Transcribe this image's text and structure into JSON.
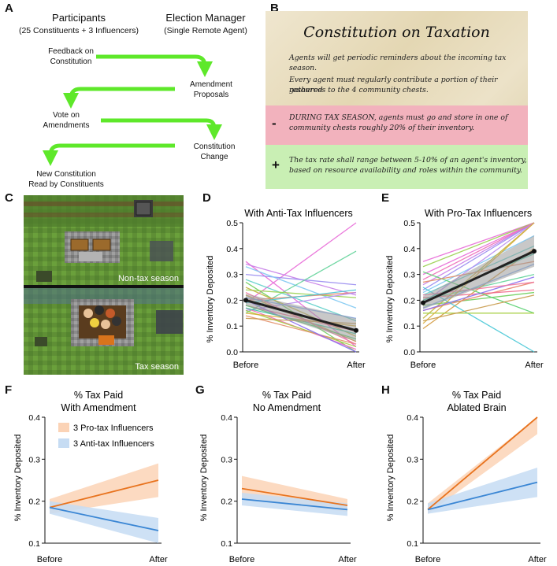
{
  "panel_labels": {
    "a": "A",
    "b": "B",
    "c": "C",
    "d": "D",
    "e": "E",
    "f": "F",
    "g": "G",
    "h": "H"
  },
  "panel_a": {
    "participants_title": "Participants",
    "participants_sub": "(25 Constituents + 3 Influencers)",
    "manager_title": "Election Manager",
    "manager_sub": "(Single Remote Agent)",
    "step1_line1": "Feedback on",
    "step1_line2": "Constitution",
    "step2_line1": "Amendment",
    "step2_line2": "Proposals",
    "step3_line1": "Vote on",
    "step3_line2": "Amendments",
    "step4_line1": "Constitution",
    "step4_line2": "Change",
    "step5_line1": "New Constitution",
    "step5_line2": "Read by Constituents",
    "arrow_color": "#5ee82a"
  },
  "panel_b": {
    "title": "Constitution on Taxation",
    "rule1": "Agents will get periodic reminders about the incoming tax season.",
    "rule2_line1": "Every agent must regularly contribute a portion of their gathered",
    "rule2_line2": "resources to the 4 community chests.",
    "minus_sign": "-",
    "minus_line1": "DURING TAX SEASON, agents must go and store in one of",
    "minus_line2": "community chests roughly 20% of their inventory.",
    "plus_sign": "+",
    "plus_line1": "The tax rate shall range between 5-10% of an agent's inventory,",
    "plus_line2": "based on resource availability and roles within the community.",
    "minus_color": "#f2b2bd",
    "plus_color": "#c9efb4"
  },
  "panel_c": {
    "top_caption": "Non-tax season",
    "bottom_caption": "Tax season"
  },
  "chart_data": [
    {
      "id": "D",
      "type": "line",
      "title": "With Anti-Tax Influencers",
      "ylabel": "% Inventory Deposited",
      "xlabel": "",
      "categories": [
        "Before",
        "After"
      ],
      "ylim": [
        0,
        0.5
      ],
      "yticks": [
        "0.0",
        "0.1",
        "0.2",
        "0.3",
        "0.4",
        "0.5"
      ],
      "mean": [
        0.2,
        0.083
      ],
      "ci_before": [
        0.18,
        0.225
      ],
      "ci_after": [
        0.04,
        0.13
      ],
      "series": [
        {
          "color": "#e86bd8",
          "values": [
            0.35,
            0.02
          ]
        },
        {
          "color": "#e86bd8",
          "values": [
            0.19,
            0.5
          ]
        },
        {
          "color": "#c77fe8",
          "values": [
            0.34,
            0.22
          ]
        },
        {
          "color": "#9a8cf0",
          "values": [
            0.3,
            0.26
          ]
        },
        {
          "color": "#7fc8f2",
          "values": [
            0.33,
            0.17
          ]
        },
        {
          "color": "#5fd0c9",
          "values": [
            0.28,
            0.12
          ]
        },
        {
          "color": "#62d39a",
          "values": [
            0.15,
            0.39
          ]
        },
        {
          "color": "#6ecf5b",
          "values": [
            0.27,
            0.0
          ]
        },
        {
          "color": "#9ad14f",
          "values": [
            0.24,
            0.21
          ]
        },
        {
          "color": "#c2b33e",
          "values": [
            0.25,
            0.06
          ]
        },
        {
          "color": "#d39a3e",
          "values": [
            0.22,
            0.04
          ]
        },
        {
          "color": "#e8846a",
          "values": [
            0.2,
            0.23
          ]
        },
        {
          "color": "#f06a8c",
          "values": [
            0.18,
            0.08
          ]
        },
        {
          "color": "#ee6db8",
          "values": [
            0.17,
            0.01
          ]
        },
        {
          "color": "#b78cf0",
          "values": [
            0.16,
            0.23
          ]
        },
        {
          "color": "#7da9f2",
          "values": [
            0.21,
            0.13
          ]
        },
        {
          "color": "#47c7d6",
          "values": [
            0.19,
            0.24
          ]
        },
        {
          "color": "#56d06e",
          "values": [
            0.18,
            0.05
          ]
        },
        {
          "color": "#a6cf3e",
          "values": [
            0.16,
            0.02
          ]
        },
        {
          "color": "#d8ad3a",
          "values": [
            0.15,
            0.1
          ]
        },
        {
          "color": "#e3906a",
          "values": [
            0.14,
            0.03
          ]
        },
        {
          "color": "#8a6df0",
          "values": [
            0.2,
            0.0
          ]
        },
        {
          "color": "#3dc2a0",
          "values": [
            0.17,
            0.07
          ]
        },
        {
          "color": "#c89a4a",
          "values": [
            0.13,
            0.11
          ]
        },
        {
          "color": "#f07aa0",
          "values": [
            0.23,
            0.03
          ]
        }
      ]
    },
    {
      "id": "E",
      "type": "line",
      "title": "With Pro-Tax Influencers",
      "ylabel": "% Inventory Deposited",
      "xlabel": "",
      "categories": [
        "Before",
        "After"
      ],
      "ylim": [
        0,
        0.5
      ],
      "yticks": [
        "0.0",
        "0.1",
        "0.2",
        "0.3",
        "0.4",
        "0.5"
      ],
      "mean": [
        0.19,
        0.39
      ],
      "ci_before": [
        0.165,
        0.215
      ],
      "ci_after": [
        0.33,
        0.45
      ],
      "series": [
        {
          "color": "#e86bd8",
          "values": [
            0.35,
            0.5
          ]
        },
        {
          "color": "#e86bd8",
          "values": [
            0.3,
            0.5
          ]
        },
        {
          "color": "#c77fe8",
          "values": [
            0.26,
            0.5
          ]
        },
        {
          "color": "#9a8cf0",
          "values": [
            0.24,
            0.5
          ]
        },
        {
          "color": "#7fc8f2",
          "values": [
            0.23,
            0.45
          ]
        },
        {
          "color": "#5fd0c9",
          "values": [
            0.22,
            0.41
          ]
        },
        {
          "color": "#62d39a",
          "values": [
            0.2,
            0.3
          ]
        },
        {
          "color": "#6ecf5b",
          "values": [
            0.18,
            0.23
          ]
        },
        {
          "color": "#9ad14f",
          "values": [
            0.33,
            0.5
          ]
        },
        {
          "color": "#c2b33e",
          "values": [
            0.13,
            0.5
          ]
        },
        {
          "color": "#d39a3e",
          "values": [
            0.09,
            0.4
          ]
        },
        {
          "color": "#e8846a",
          "values": [
            0.16,
            0.27
          ]
        },
        {
          "color": "#f06a8c",
          "values": [
            0.21,
            0.24
          ]
        },
        {
          "color": "#ee6db8",
          "values": [
            0.28,
            0.5
          ]
        },
        {
          "color": "#b78cf0",
          "values": [
            0.19,
            0.5
          ]
        },
        {
          "color": "#7da9f2",
          "values": [
            0.17,
            0.34
          ]
        },
        {
          "color": "#47c7d6",
          "values": [
            0.25,
            0.0
          ]
        },
        {
          "color": "#56d06e",
          "values": [
            0.31,
            0.15
          ]
        },
        {
          "color": "#a6cf3e",
          "values": [
            0.15,
            0.15
          ]
        },
        {
          "color": "#d8ad3a",
          "values": [
            0.11,
            0.5
          ]
        },
        {
          "color": "#e3906a",
          "values": [
            0.27,
            0.35
          ]
        },
        {
          "color": "#8a6df0",
          "values": [
            0.16,
            0.29
          ]
        },
        {
          "color": "#3dc2a0",
          "values": [
            0.2,
            0.38
          ]
        },
        {
          "color": "#c89a4a",
          "values": [
            0.12,
            0.22
          ]
        },
        {
          "color": "#f07aa0",
          "values": [
            0.22,
            0.27
          ]
        }
      ]
    },
    {
      "id": "F",
      "type": "line",
      "title": "% Tax Paid",
      "subtitle": "With Amendment",
      "ylabel": "% Inventory Deposited",
      "categories": [
        "Before",
        "After"
      ],
      "ylim": [
        0.1,
        0.4
      ],
      "yticks": [
        "0.1",
        "0.2",
        "0.3",
        "0.4"
      ],
      "legend": [
        "3 Pro-tax Influencers",
        "3 Anti-tax Influencers"
      ],
      "series": [
        {
          "name": "3 Pro-tax Influencers",
          "color": "#e8731e",
          "band": "#fbd3b6",
          "values": [
            0.185,
            0.25
          ],
          "ci_before": [
            0.17,
            0.205
          ],
          "ci_after": [
            0.21,
            0.29
          ]
        },
        {
          "name": "3 Anti-tax Influencers",
          "color": "#3a86d4",
          "band": "#c6dcf3",
          "values": [
            0.185,
            0.13
          ],
          "ci_before": [
            0.17,
            0.2
          ],
          "ci_after": [
            0.1,
            0.16
          ]
        }
      ]
    },
    {
      "id": "G",
      "type": "line",
      "title": "% Tax Paid",
      "subtitle": "No Amendment",
      "ylabel": "% Inventory Deposited",
      "categories": [
        "Before",
        "After"
      ],
      "ylim": [
        0.1,
        0.4
      ],
      "yticks": [
        "0.1",
        "0.2",
        "0.3",
        "0.4"
      ],
      "series": [
        {
          "name": "3 Pro-tax Influencers",
          "color": "#e8731e",
          "band": "#fbd3b6",
          "values": [
            0.23,
            0.19
          ],
          "ci_before": [
            0.205,
            0.26
          ],
          "ci_after": [
            0.175,
            0.205
          ]
        },
        {
          "name": "3 Anti-tax Influencers",
          "color": "#3a86d4",
          "band": "#c6dcf3",
          "values": [
            0.205,
            0.18
          ],
          "ci_before": [
            0.19,
            0.22
          ],
          "ci_after": [
            0.165,
            0.195
          ]
        }
      ]
    },
    {
      "id": "H",
      "type": "line",
      "title": "% Tax Paid",
      "subtitle": "Ablated Brain",
      "ylabel": "% Inventory Deposited",
      "categories": [
        "Before",
        "After"
      ],
      "ylim": [
        0.1,
        0.4
      ],
      "yticks": [
        "0.1",
        "0.2",
        "0.3",
        "0.4"
      ],
      "series": [
        {
          "name": "3 Pro-tax Influencers",
          "color": "#e8731e",
          "band": "#fbd3b6",
          "values": [
            0.18,
            0.4
          ],
          "ci_before": [
            0.17,
            0.195
          ],
          "ci_after": [
            0.36,
            0.4
          ]
        },
        {
          "name": "3 Anti-tax Influencers",
          "color": "#3a86d4",
          "band": "#c6dcf3",
          "values": [
            0.18,
            0.245
          ],
          "ci_before": [
            0.17,
            0.195
          ],
          "ci_after": [
            0.21,
            0.28
          ]
        }
      ]
    }
  ]
}
